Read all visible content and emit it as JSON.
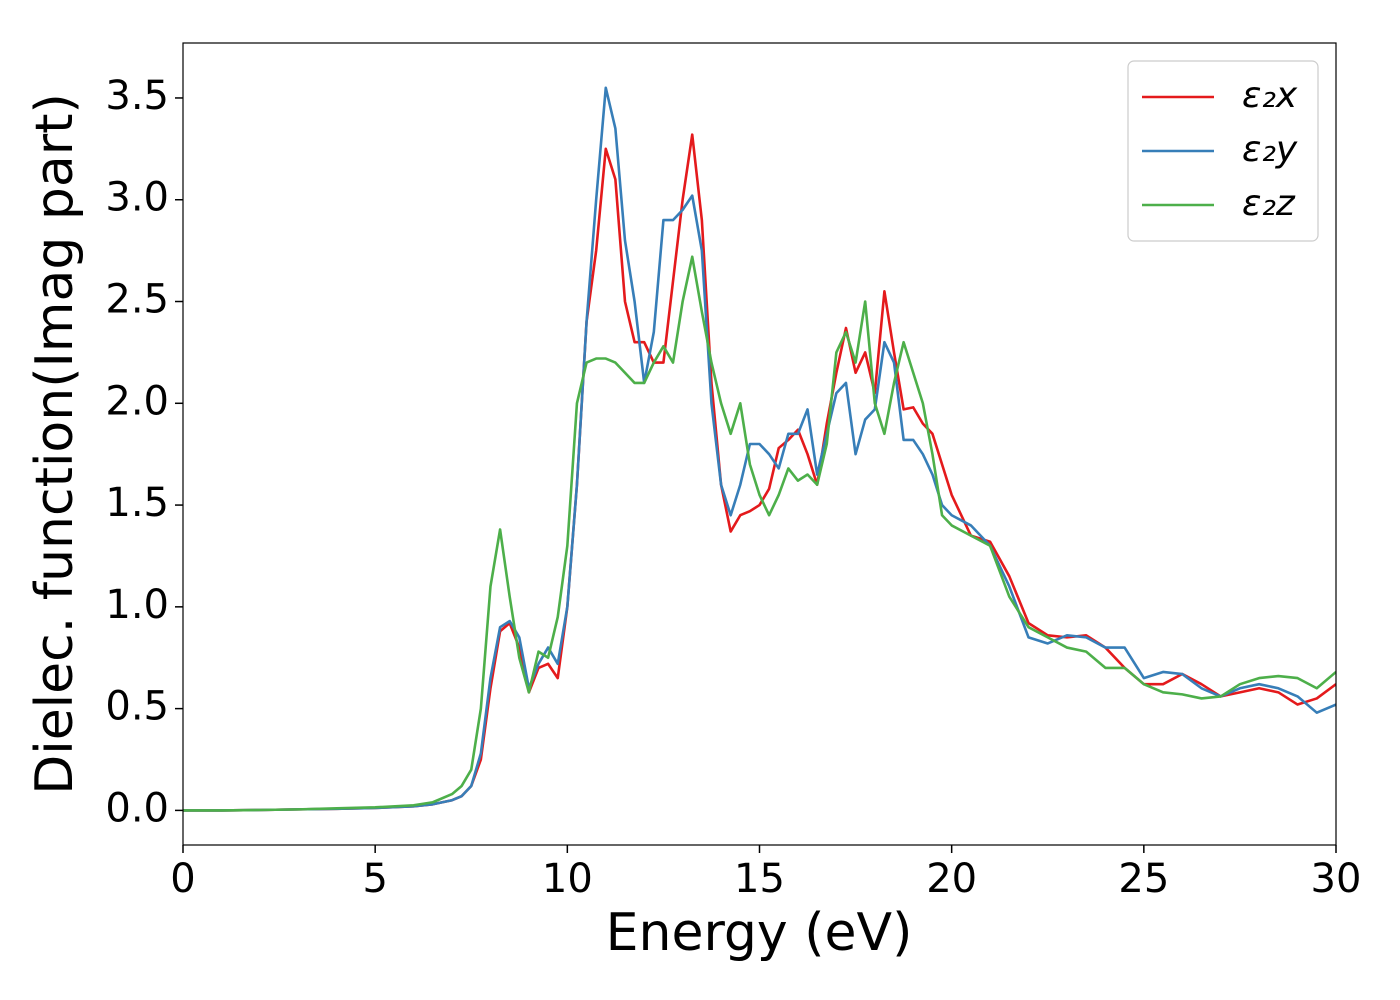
{
  "chart_data": {
    "type": "line",
    "xlabel": "Energy (eV)",
    "ylabel": "Dielec. function(Imag part)",
    "x": [
      0,
      1,
      2,
      3,
      4,
      5,
      6,
      6.5,
      7,
      7.25,
      7.5,
      7.75,
      8,
      8.25,
      8.5,
      8.75,
      9,
      9.25,
      9.5,
      9.75,
      10,
      10.25,
      10.5,
      10.75,
      11,
      11.25,
      11.5,
      11.75,
      12,
      12.25,
      12.5,
      12.75,
      13,
      13.25,
      13.5,
      13.75,
      14,
      14.25,
      14.5,
      14.75,
      15,
      15.25,
      15.5,
      15.75,
      16,
      16.25,
      16.5,
      16.75,
      17,
      17.25,
      17.5,
      17.75,
      18,
      18.25,
      18.5,
      18.75,
      19,
      19.25,
      19.5,
      19.75,
      20,
      20.5,
      21,
      21.5,
      22,
      22.5,
      23,
      23.5,
      24,
      24.5,
      25,
      25.5,
      26,
      26.5,
      27,
      27.5,
      28,
      28.5,
      29,
      29.5,
      30
    ],
    "series": [
      {
        "name": "ε₂x",
        "color": "#e41a1c",
        "values": [
          0,
          0,
          0.002,
          0.005,
          0.008,
          0.012,
          0.02,
          0.03,
          0.05,
          0.07,
          0.12,
          0.25,
          0.6,
          0.88,
          0.92,
          0.8,
          0.58,
          0.7,
          0.72,
          0.65,
          1.0,
          1.6,
          2.4,
          2.75,
          3.25,
          3.1,
          2.5,
          2.3,
          2.3,
          2.2,
          2.2,
          2.6,
          3.0,
          3.32,
          2.9,
          2.1,
          1.6,
          1.37,
          1.45,
          1.47,
          1.5,
          1.58,
          1.78,
          1.82,
          1.87,
          1.75,
          1.6,
          1.9,
          2.15,
          2.37,
          2.15,
          2.25,
          2.05,
          2.55,
          2.25,
          1.97,
          1.98,
          1.9,
          1.85,
          1.7,
          1.55,
          1.35,
          1.32,
          1.15,
          0.92,
          0.86,
          0.85,
          0.86,
          0.8,
          0.7,
          0.62,
          0.62,
          0.67,
          0.62,
          0.56,
          0.58,
          0.6,
          0.58,
          0.52,
          0.55,
          0.62
        ]
      },
      {
        "name": "ε₂y",
        "color": "#377eb8",
        "values": [
          0,
          0,
          0.002,
          0.005,
          0.008,
          0.012,
          0.02,
          0.03,
          0.05,
          0.07,
          0.12,
          0.28,
          0.65,
          0.9,
          0.93,
          0.85,
          0.6,
          0.72,
          0.8,
          0.72,
          1.0,
          1.6,
          2.4,
          3.0,
          3.55,
          3.35,
          2.8,
          2.5,
          2.1,
          2.35,
          2.9,
          2.9,
          2.95,
          3.02,
          2.75,
          2.0,
          1.6,
          1.45,
          1.6,
          1.8,
          1.8,
          1.75,
          1.68,
          1.85,
          1.85,
          1.97,
          1.65,
          1.85,
          2.05,
          2.1,
          1.75,
          1.92,
          1.97,
          2.3,
          2.2,
          1.82,
          1.82,
          1.75,
          1.65,
          1.5,
          1.45,
          1.4,
          1.3,
          1.1,
          0.85,
          0.82,
          0.86,
          0.85,
          0.8,
          0.8,
          0.65,
          0.68,
          0.67,
          0.6,
          0.56,
          0.6,
          0.62,
          0.6,
          0.56,
          0.48,
          0.52
        ]
      },
      {
        "name": "ε₂z",
        "color": "#4daf4a",
        "values": [
          0,
          0,
          0.002,
          0.005,
          0.01,
          0.015,
          0.025,
          0.04,
          0.08,
          0.12,
          0.2,
          0.5,
          1.1,
          1.38,
          1.05,
          0.75,
          0.58,
          0.78,
          0.75,
          0.95,
          1.3,
          2.0,
          2.2,
          2.22,
          2.22,
          2.2,
          2.15,
          2.1,
          2.1,
          2.2,
          2.28,
          2.2,
          2.5,
          2.72,
          2.45,
          2.2,
          2.0,
          1.85,
          2.0,
          1.7,
          1.55,
          1.45,
          1.55,
          1.68,
          1.62,
          1.65,
          1.6,
          1.8,
          2.25,
          2.35,
          2.2,
          2.5,
          2.0,
          1.85,
          2.1,
          2.3,
          2.15,
          2.0,
          1.75,
          1.45,
          1.4,
          1.35,
          1.3,
          1.05,
          0.9,
          0.85,
          0.8,
          0.78,
          0.7,
          0.7,
          0.62,
          0.58,
          0.57,
          0.55,
          0.56,
          0.62,
          0.65,
          0.66,
          0.65,
          0.6,
          0.68
        ]
      }
    ],
    "xlim": [
      0,
      30
    ],
    "xticks": [
      0,
      5,
      10,
      15,
      20,
      25,
      30
    ],
    "ylim": [
      -0.17,
      3.77
    ],
    "yticks": [
      {
        "value": 0,
        "label": "0.0"
      },
      0.5,
      {
        "value": 1,
        "label": "1.0"
      },
      1.5,
      {
        "value": 2,
        "label": "2.0"
      },
      2.5,
      {
        "value": 3,
        "label": "3.0"
      },
      3.5
    ],
    "grid": false,
    "legend": "upper right"
  }
}
